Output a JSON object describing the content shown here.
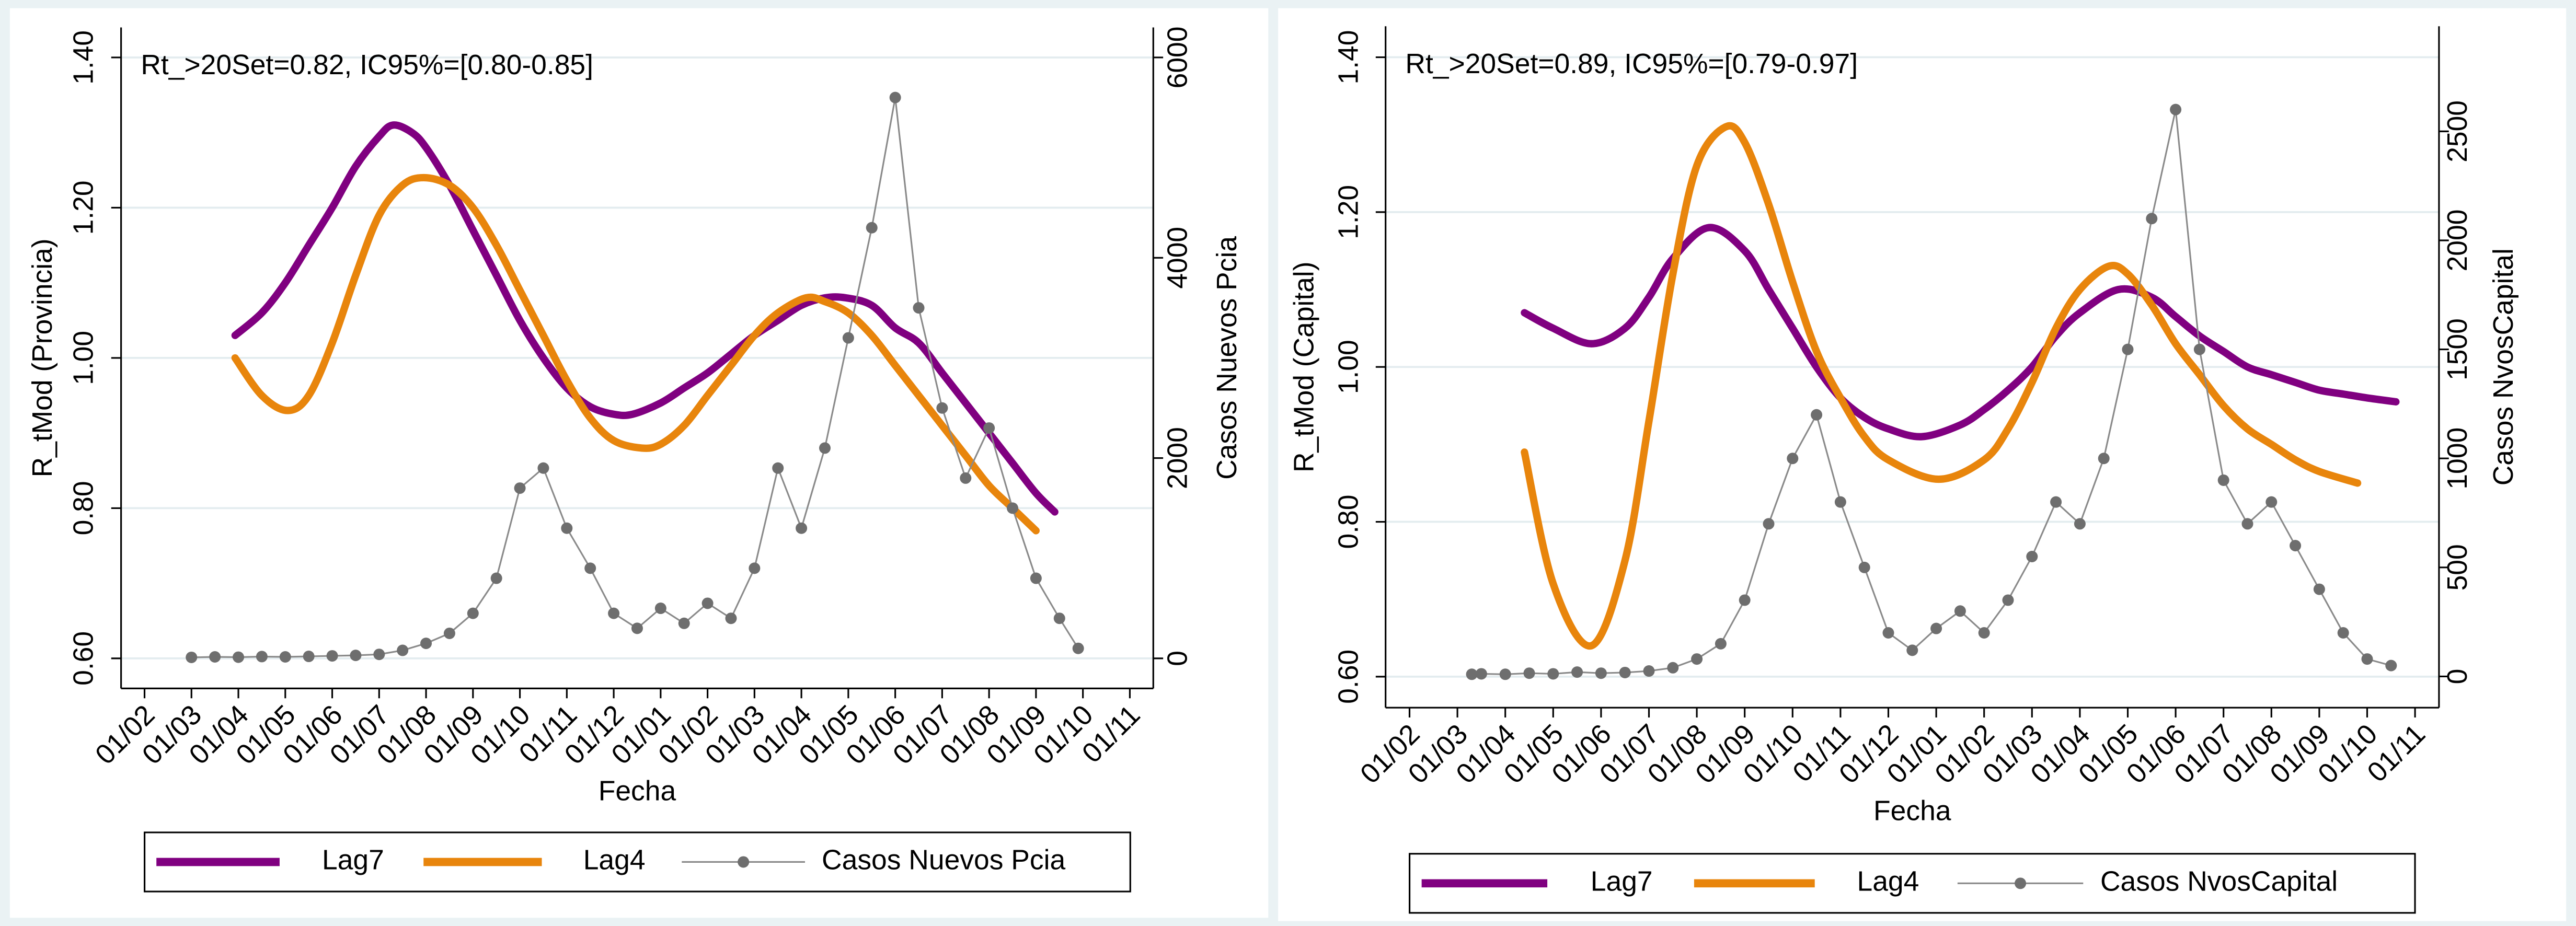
{
  "chart_data": [
    {
      "type": "line",
      "annotation": "Rt_>20Set=0.82, IC95%=[0.80-0.85]",
      "x_label": "Fecha",
      "y_label": "R_tMod (Provincia)",
      "y2_label": "Casos Nuevos Pcia",
      "xlim": [
        1.5,
        23.5
      ],
      "xticks": [
        {
          "value": 2,
          "label": "01/02"
        },
        {
          "value": 3,
          "label": "01/03"
        },
        {
          "value": 4,
          "label": "01/04"
        },
        {
          "value": 5,
          "label": "01/05"
        },
        {
          "value": 6,
          "label": "01/06"
        },
        {
          "value": 7,
          "label": "01/07"
        },
        {
          "value": 8,
          "label": "01/08"
        },
        {
          "value": 9,
          "label": "01/09"
        },
        {
          "value": 10,
          "label": "01/10"
        },
        {
          "value": 11,
          "label": "01/11"
        },
        {
          "value": 12,
          "label": "01/12"
        },
        {
          "value": 13,
          "label": "01/01"
        },
        {
          "value": 14,
          "label": "01/02"
        },
        {
          "value": 15,
          "label": "01/03"
        },
        {
          "value": 16,
          "label": "01/04"
        },
        {
          "value": 17,
          "label": "01/05"
        },
        {
          "value": 18,
          "label": "01/06"
        },
        {
          "value": 19,
          "label": "01/07"
        },
        {
          "value": 20,
          "label": "01/08"
        },
        {
          "value": 21,
          "label": "01/09"
        },
        {
          "value": 22,
          "label": "01/10"
        },
        {
          "value": 23,
          "label": "01/11"
        }
      ],
      "ylim": [
        0.56,
        1.44
      ],
      "yticks": [
        {
          "value": 0.6,
          "label": "0.60"
        },
        {
          "value": 0.8,
          "label": "0.80"
        },
        {
          "value": 1.0,
          "label": "1.00"
        },
        {
          "value": 1.2,
          "label": "1.20"
        },
        {
          "value": 1.4,
          "label": "1.40"
        }
      ],
      "y2lim": [
        -300,
        6300
      ],
      "y2ticks": [
        0,
        2000,
        4000,
        6000
      ],
      "grid": true,
      "legend_position": "bottom",
      "series": [
        {
          "name": "Lag7",
          "color": "#800080",
          "x": [
            3.93,
            4.5,
            5,
            5.5,
            6,
            6.5,
            7,
            7.3,
            7.7,
            8,
            8.5,
            9,
            9.5,
            10,
            10.5,
            11,
            11.5,
            12,
            12.4,
            13,
            13.5,
            14,
            14.5,
            15,
            15.5,
            16,
            16.5,
            16.95,
            17.5,
            18,
            18.5,
            19,
            19.5,
            20,
            20.5,
            21,
            21.4
          ],
          "values": [
            1.03,
            1.06,
            1.1,
            1.15,
            1.2,
            1.255,
            1.295,
            1.31,
            1.3,
            1.28,
            1.23,
            1.17,
            1.11,
            1.05,
            1.0,
            0.96,
            0.935,
            0.925,
            0.925,
            0.94,
            0.96,
            0.98,
            1.005,
            1.03,
            1.05,
            1.07,
            1.08,
            1.08,
            1.07,
            1.04,
            1.02,
            0.98,
            0.94,
            0.9,
            0.86,
            0.82,
            0.795
          ]
        },
        {
          "name": "Lag4",
          "color": "#e8850c",
          "x": [
            3.93,
            4.5,
            5.05,
            5.5,
            6,
            6.5,
            7,
            7.5,
            7.95,
            8.5,
            9,
            9.5,
            10,
            10.5,
            11,
            11.5,
            12,
            12.6,
            13,
            13.5,
            14,
            14.5,
            15,
            15.5,
            16.1,
            16.5,
            17,
            17.5,
            18,
            18.5,
            19,
            19.5,
            20,
            20.5,
            21
          ],
          "values": [
            1.0,
            0.95,
            0.93,
            0.95,
            1.02,
            1.11,
            1.19,
            1.23,
            1.24,
            1.23,
            1.2,
            1.15,
            1.09,
            1.03,
            0.97,
            0.92,
            0.89,
            0.88,
            0.885,
            0.91,
            0.95,
            0.99,
            1.03,
            1.06,
            1.08,
            1.075,
            1.06,
            1.03,
            0.99,
            0.95,
            0.91,
            0.87,
            0.83,
            0.8,
            0.77
          ]
        },
        {
          "name": "Casos Nuevos Pcia",
          "color": "#6e6e6e",
          "axis": "y2",
          "markers": true,
          "x": [
            3,
            3.5,
            4,
            4.5,
            5,
            5.5,
            6,
            6.5,
            7,
            7.5,
            8,
            8.5,
            9,
            9.5,
            10,
            10.5,
            11,
            11.5,
            12,
            12.5,
            13,
            13.5,
            14,
            14.5,
            15,
            15.5,
            16,
            16.5,
            17,
            17.5,
            18,
            18.5,
            19,
            19.5,
            20,
            20.5,
            21,
            21.5,
            21.9
          ],
          "values": [
            10,
            15,
            12,
            18,
            15,
            20,
            25,
            30,
            40,
            80,
            150,
            250,
            450,
            800,
            1700,
            1900,
            1300,
            900,
            450,
            300,
            500,
            350,
            550,
            400,
            900,
            1900,
            1300,
            2100,
            3200,
            4300,
            5600,
            3500,
            2500,
            1800,
            2300,
            1500,
            800,
            400,
            100
          ]
        }
      ]
    },
    {
      "type": "line",
      "annotation": "Rt_>20Set=0.89, IC95%=[0.79-0.97]",
      "x_label": "Fecha",
      "y_label": "R_tMod (Capital)",
      "y2_label": "Casos NvosCapital",
      "xlim": [
        1.5,
        23.5
      ],
      "xticks": [
        {
          "value": 2,
          "label": "01/02"
        },
        {
          "value": 3,
          "label": "01/03"
        },
        {
          "value": 4,
          "label": "01/04"
        },
        {
          "value": 5,
          "label": "01/05"
        },
        {
          "value": 6,
          "label": "01/06"
        },
        {
          "value": 7,
          "label": "01/07"
        },
        {
          "value": 8,
          "label": "01/08"
        },
        {
          "value": 9,
          "label": "01/09"
        },
        {
          "value": 10,
          "label": "01/10"
        },
        {
          "value": 11,
          "label": "01/11"
        },
        {
          "value": 12,
          "label": "01/12"
        },
        {
          "value": 13,
          "label": "01/01"
        },
        {
          "value": 14,
          "label": "01/02"
        },
        {
          "value": 15,
          "label": "01/03"
        },
        {
          "value": 16,
          "label": "01/04"
        },
        {
          "value": 17,
          "label": "01/05"
        },
        {
          "value": 18,
          "label": "01/06"
        },
        {
          "value": 19,
          "label": "01/07"
        },
        {
          "value": 20,
          "label": "01/08"
        },
        {
          "value": 21,
          "label": "01/09"
        },
        {
          "value": 22,
          "label": "01/10"
        },
        {
          "value": 23,
          "label": "01/11"
        }
      ],
      "ylim": [
        0.56,
        1.44
      ],
      "yticks": [
        {
          "value": 0.6,
          "label": "0.60"
        },
        {
          "value": 0.8,
          "label": "0.80"
        },
        {
          "value": 1.0,
          "label": "1.00"
        },
        {
          "value": 1.2,
          "label": "1.20"
        },
        {
          "value": 1.4,
          "label": "1.40"
        }
      ],
      "y2lim": [
        -143,
        2982
      ],
      "y2ticks": [
        0,
        500,
        1000,
        1500,
        2000,
        2500
      ],
      "grid": true,
      "legend_position": "bottom",
      "series": [
        {
          "name": "Lag7",
          "color": "#800080",
          "x": [
            4.4,
            5,
            5.8,
            6.5,
            7,
            7.5,
            8.25,
            9,
            9.5,
            10,
            10.5,
            11,
            11.5,
            12,
            12.7,
            13.5,
            14,
            14.5,
            15,
            15.5,
            16,
            16.8,
            17.5,
            18,
            18.5,
            19,
            19.5,
            20,
            20.5,
            21,
            21.5,
            22,
            22.6
          ],
          "values": [
            1.07,
            1.05,
            1.03,
            1.05,
            1.09,
            1.14,
            1.18,
            1.15,
            1.1,
            1.05,
            1.0,
            0.96,
            0.935,
            0.92,
            0.91,
            0.925,
            0.945,
            0.97,
            1.0,
            1.04,
            1.07,
            1.1,
            1.09,
            1.065,
            1.04,
            1.02,
            1.0,
            0.99,
            0.98,
            0.97,
            0.965,
            0.96,
            0.955
          ]
        },
        {
          "name": "Lag4",
          "color": "#e8850c",
          "x": [
            4.4,
            5,
            5.8,
            6.5,
            7,
            7.5,
            8,
            8.6,
            9,
            9.5,
            10,
            10.5,
            11,
            11.5,
            12,
            13.05,
            14,
            14.5,
            15,
            15.5,
            16,
            16.6,
            17,
            17.5,
            18,
            18.5,
            19,
            19.5,
            20,
            20.5,
            21,
            21.8
          ],
          "values": [
            0.89,
            0.72,
            0.64,
            0.75,
            0.93,
            1.12,
            1.26,
            1.31,
            1.29,
            1.21,
            1.11,
            1.02,
            0.96,
            0.91,
            0.88,
            0.855,
            0.88,
            0.92,
            0.98,
            1.05,
            1.1,
            1.13,
            1.12,
            1.08,
            1.03,
            0.99,
            0.95,
            0.92,
            0.9,
            0.88,
            0.865,
            0.85
          ]
        },
        {
          "name": "Casos NvosCapital",
          "color": "#6e6e6e",
          "axis": "y2",
          "markers": true,
          "x": [
            3.3,
            3.5,
            4,
            4.5,
            5,
            5.5,
            6,
            6.5,
            7,
            7.5,
            8,
            8.5,
            9,
            9.5,
            10,
            10.5,
            11,
            11.5,
            12,
            12.5,
            13,
            13.5,
            14,
            14.5,
            15,
            15.5,
            16,
            16.5,
            17,
            17.5,
            18,
            18.5,
            19,
            19.5,
            20,
            20.5,
            21,
            21.5,
            22,
            22.5
          ],
          "values": [
            10,
            12,
            10,
            15,
            12,
            20,
            15,
            18,
            25,
            40,
            80,
            150,
            350,
            700,
            1000,
            1200,
            800,
            500,
            200,
            120,
            220,
            300,
            200,
            350,
            550,
            800,
            700,
            1000,
            1500,
            2100,
            2600,
            1500,
            900,
            700,
            800,
            600,
            400,
            200,
            80,
            50
          ]
        }
      ]
    }
  ]
}
